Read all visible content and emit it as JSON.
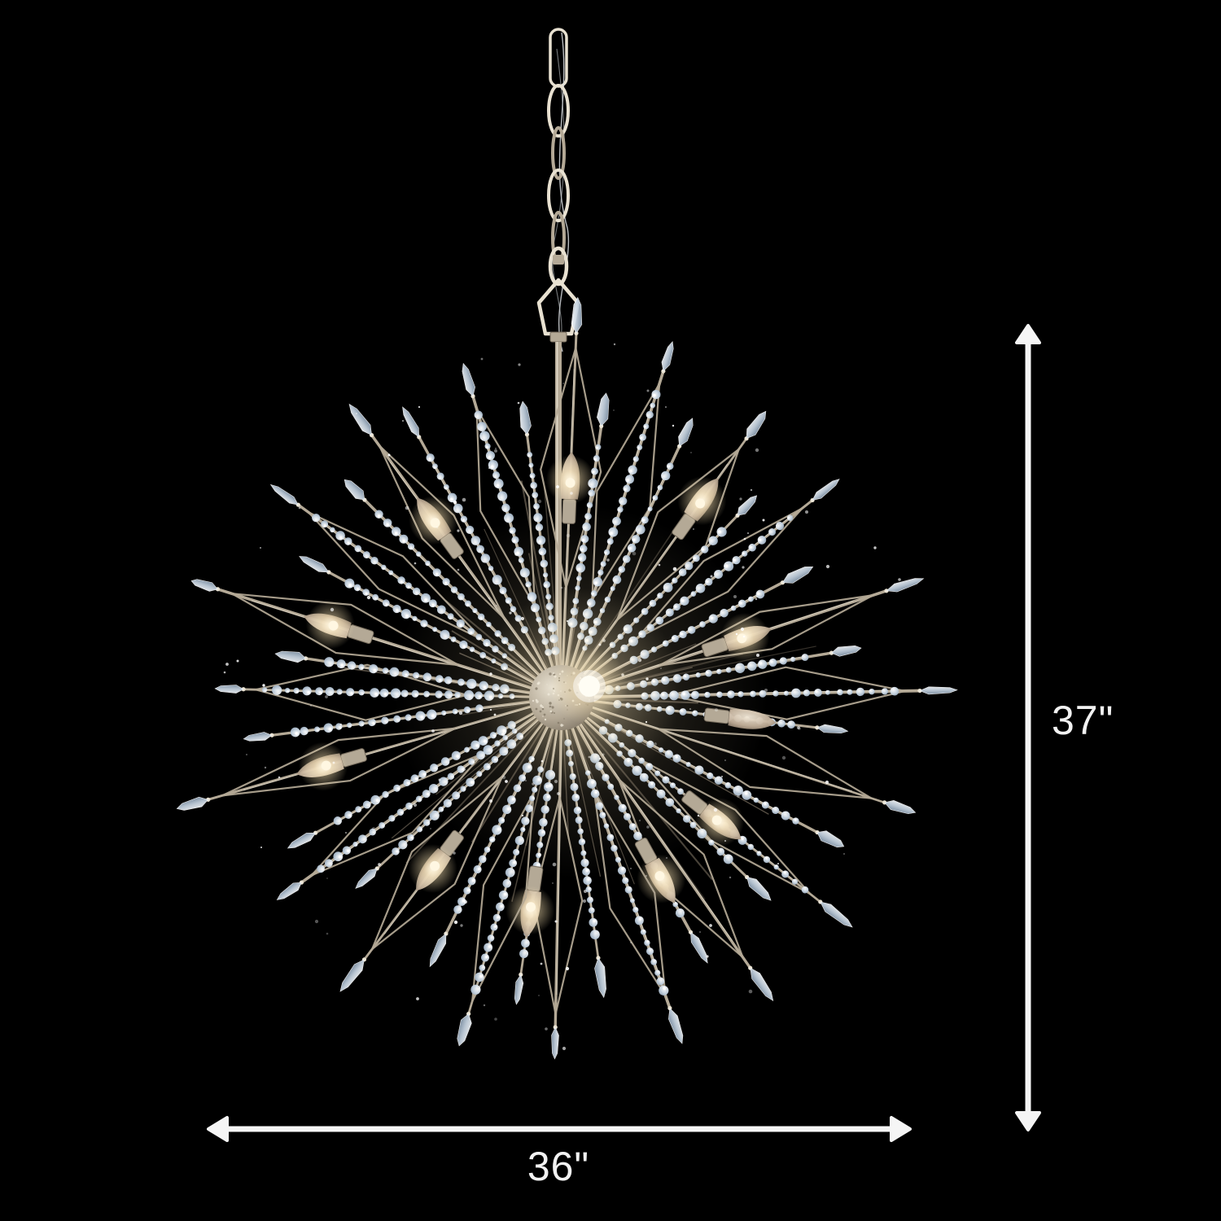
{
  "page": {
    "background": "#000000",
    "subject": "crystal sputnik starburst chandelier product photo with dimension annotations, hanging from a chain on a black background"
  },
  "product": {
    "finish_colors": {
      "metal": "#b4a996",
      "metal_light": "#e8e1d1",
      "metal_dark": "#73695a",
      "crystal_light": "#f4f8fc",
      "crystal_mid": "#c6d4e2",
      "crystal_dark": "#8da0b4",
      "glow_warm": "#ffe9b8",
      "glow_core": "#fff8e6"
    }
  },
  "dimensions": {
    "height_label": "37\"",
    "width_label": "36\"",
    "annotation_color": "#f5f5f5"
  }
}
